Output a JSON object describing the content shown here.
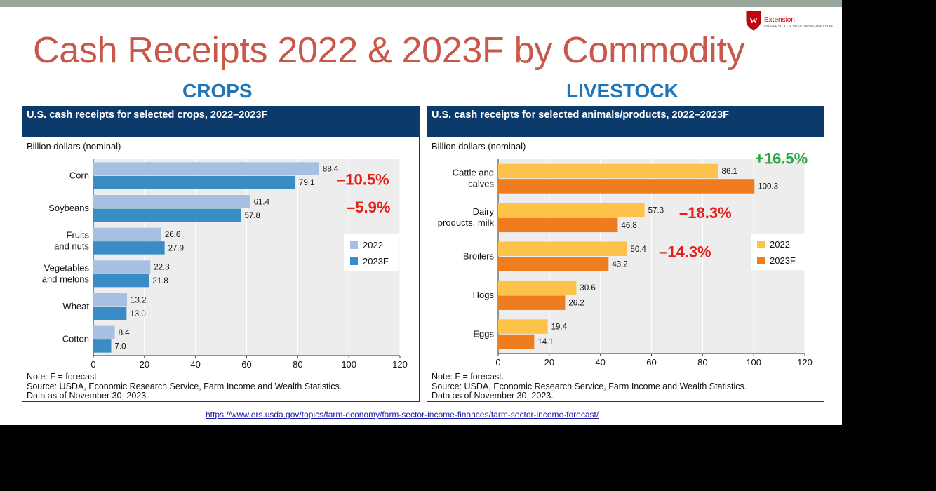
{
  "slide": {
    "title": "Cash Receipts 2022 & 2023F by Commodity",
    "logo_text": "Extension",
    "logo_subtext": "UNIVERSITY OF WISCONSIN–MADISON",
    "crops_heading": "CROPS",
    "livestock_heading": "LIVESTOCK",
    "source_url": "https://www.ers.usda.gov/topics/farm-economy/farm-sector-income-finances/farm-sector-income-forecast/",
    "colors": {
      "title": "#c9584a",
      "heading": "#1f75b8",
      "panel_header": "#0b3a6b",
      "negative": "#e32119",
      "positive": "#27a844"
    }
  },
  "chart_data": [
    {
      "type": "bar",
      "orientation": "horizontal",
      "title": "U.S. cash receipts for selected crops, 2022–2023F",
      "ylabel": "Billion dollars (nominal)",
      "categories": [
        "Corn",
        "Soybeans",
        "Fruits\nand nuts",
        "Vegetables\nand melons",
        "Wheat",
        "Cotton"
      ],
      "series": [
        {
          "name": "2022",
          "color": "#a7bfe0",
          "values": [
            88.4,
            61.4,
            26.6,
            22.3,
            13.2,
            8.4
          ]
        },
        {
          "name": "2023F",
          "color": "#3a8dc4",
          "values": [
            79.1,
            57.8,
            27.9,
            21.8,
            13.0,
            7.0
          ]
        }
      ],
      "value_labels_2022": [
        "88.4",
        "61.4",
        "26.6",
        "22.3",
        "13.2",
        "8.4"
      ],
      "value_labels_2023F": [
        "79.1",
        "57.8",
        "27.9",
        "21.8",
        "13.0",
        "7.0"
      ],
      "xlim": [
        0,
        120
      ],
      "xticks": [
        0,
        20,
        40,
        60,
        80,
        100,
        120
      ],
      "xtick_labels": [
        "0",
        "20",
        "40",
        "60",
        "80",
        "100",
        "120"
      ],
      "legend": [
        "2022",
        "2023F"
      ],
      "legend_position": "right",
      "grid": true,
      "annotations": [
        {
          "text": "–10.5%",
          "category": "Corn",
          "color": "#e32119"
        },
        {
          "text": "–5.9%",
          "category": "Soybeans",
          "color": "#e32119"
        }
      ],
      "notes": [
        "Note: F = forecast.",
        "Source: USDA, Economic Research Service, Farm Income and Wealth Statistics.",
        "Data as of November 30, 2023."
      ]
    },
    {
      "type": "bar",
      "orientation": "horizontal",
      "title": "U.S. cash receipts for selected animals/products, 2022–2023F",
      "ylabel": "Billion dollars (nominal)",
      "categories": [
        "Cattle and\ncalves",
        "Dairy\nproducts, milk",
        "Broilers",
        "Hogs",
        "Eggs"
      ],
      "series": [
        {
          "name": "2022",
          "color": "#fcc24a",
          "values": [
            86.1,
            57.3,
            50.4,
            30.6,
            19.4
          ]
        },
        {
          "name": "2023F",
          "color": "#ef7c1e",
          "values": [
            100.3,
            46.8,
            43.2,
            26.2,
            14.1
          ]
        }
      ],
      "value_labels_2022": [
        "86.1",
        "57.3",
        "50.4",
        "30.6",
        "19.4"
      ],
      "value_labels_2023F": [
        "100.3",
        "46.8",
        "43.2",
        "26.2",
        "14.1"
      ],
      "xlim": [
        0,
        120
      ],
      "xticks": [
        0,
        20,
        40,
        60,
        80,
        100,
        120
      ],
      "xtick_labels": [
        "0",
        "20",
        "40",
        "60",
        "80",
        "100",
        "120"
      ],
      "legend": [
        "2022",
        "2023F"
      ],
      "legend_position": "right",
      "grid": true,
      "annotations": [
        {
          "text": "+16.5%",
          "category": "Cattle and\ncalves",
          "color": "#27a844"
        },
        {
          "text": "–18.3%",
          "category": "Dairy\nproducts, milk",
          "color": "#e32119"
        },
        {
          "text": "–14.3%",
          "category": "Broilers",
          "color": "#e32119"
        }
      ],
      "notes": [
        "Note: F = forecast.",
        "Source: USDA, Economic Research Service, Farm Income and Wealth Statistics.",
        "Data as of November 30, 2023."
      ]
    }
  ]
}
